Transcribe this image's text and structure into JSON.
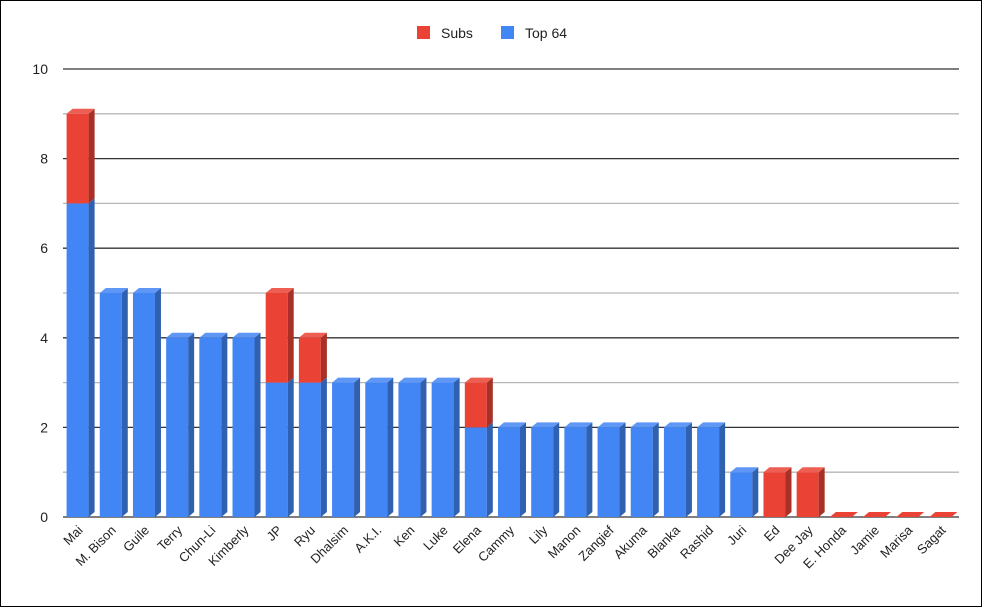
{
  "chart_data": {
    "type": "bar",
    "stacked": true,
    "style": "3d",
    "categories": [
      "Mai",
      "M. Bison",
      "Guile",
      "Terry",
      "Chun-Li",
      "Kimberly",
      "JP",
      "Ryu",
      "Dhalsim",
      "A.K.I.",
      "Ken",
      "Luke",
      "Elena",
      "Cammy",
      "Lily",
      "Manon",
      "Zangief",
      "Akuma",
      "Blanka",
      "Rashid",
      "Juri",
      "Ed",
      "Dee Jay",
      "E. Honda",
      "Jamie",
      "Marisa",
      "Sagat"
    ],
    "series": [
      {
        "name": "Top 64",
        "color": "#4285f4",
        "values": [
          7,
          5,
          5,
          4,
          4,
          4,
          3,
          3,
          3,
          3,
          3,
          3,
          2,
          2,
          2,
          2,
          2,
          2,
          2,
          2,
          1,
          0,
          0,
          0,
          0,
          0,
          0
        ]
      },
      {
        "name": "Subs",
        "color": "#ea4335",
        "values": [
          2,
          0,
          0,
          0,
          0,
          0,
          2,
          1,
          0,
          0,
          0,
          0,
          1,
          0,
          0,
          0,
          0,
          0,
          0,
          0,
          0,
          1,
          1,
          0,
          0,
          0,
          0
        ]
      }
    ],
    "legend_order": [
      "Subs",
      "Top 64"
    ],
    "legend_position": "top",
    "ylim": [
      0,
      10
    ],
    "yticks": [
      0,
      2,
      4,
      6,
      8,
      10
    ],
    "minor_gridlines": true,
    "title": "",
    "xlabel": "",
    "ylabel": ""
  }
}
